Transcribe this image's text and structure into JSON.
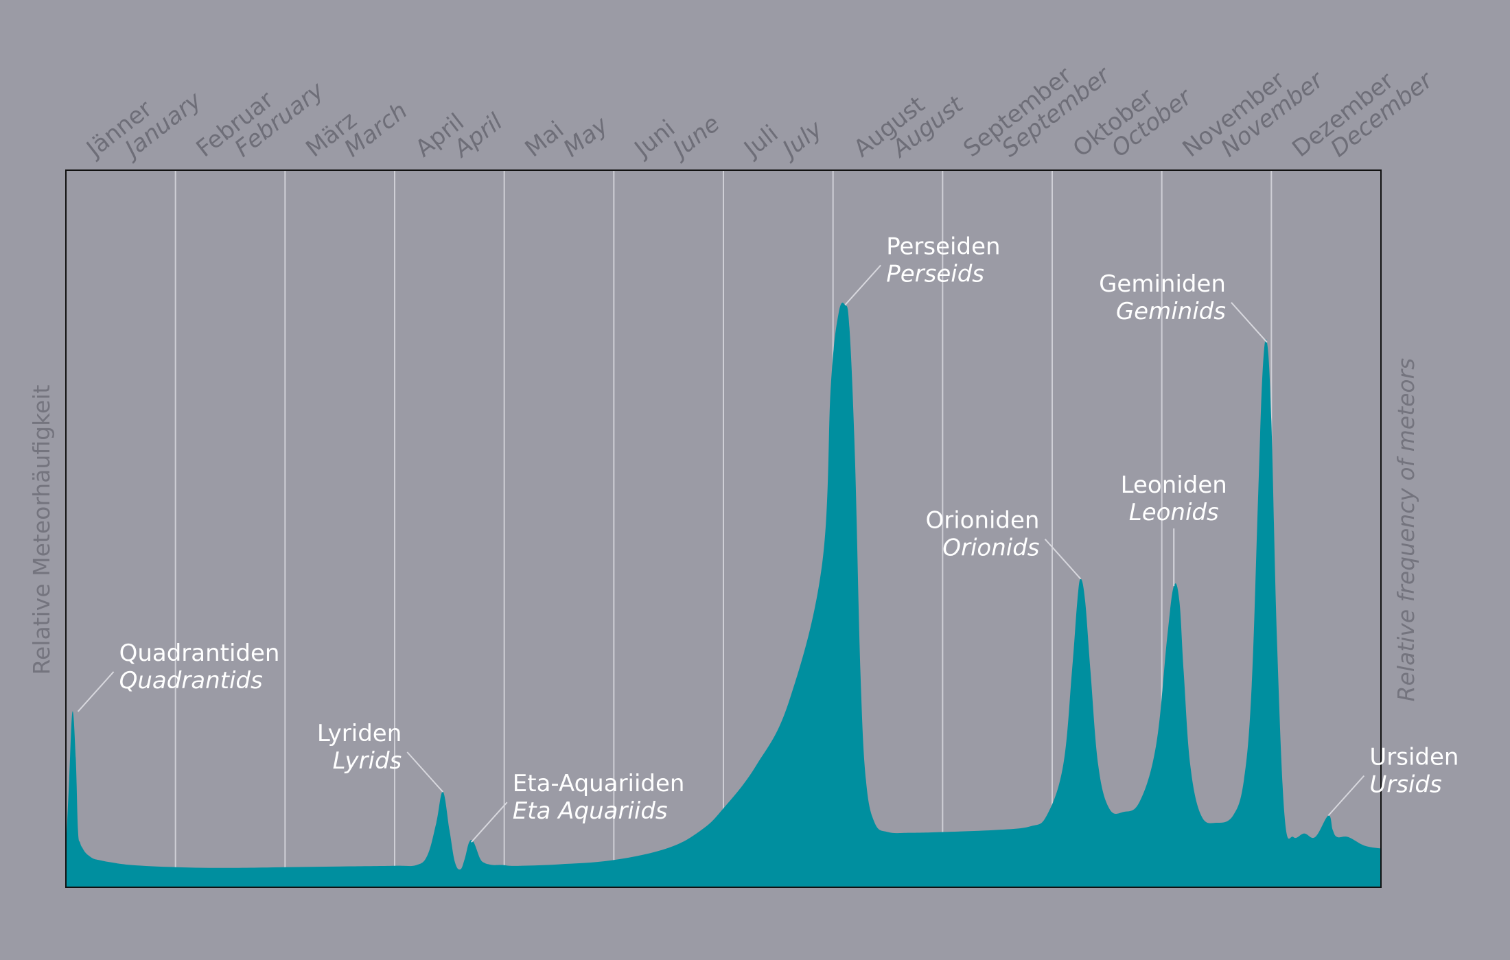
{
  "chart_data": {
    "type": "area",
    "fill_color": "#008f9f",
    "background_color": "#9b9ba5",
    "xlim": [
      0,
      12
    ],
    "ylim": [
      0,
      1
    ],
    "grid_vertical": true,
    "months": [
      {
        "de": "Jänner",
        "en": "January"
      },
      {
        "de": "Februar",
        "en": "February"
      },
      {
        "de": "März",
        "en": "March"
      },
      {
        "de": "April",
        "en": "April"
      },
      {
        "de": "Mai",
        "en": "May"
      },
      {
        "de": "Juni",
        "en": "June"
      },
      {
        "de": "Juli",
        "en": "July"
      },
      {
        "de": "August",
        "en": "August"
      },
      {
        "de": "September",
        "en": "September"
      },
      {
        "de": "Oktober",
        "en": "October"
      },
      {
        "de": "November",
        "en": "November"
      },
      {
        "de": "Dezember",
        "en": "December"
      }
    ],
    "ylabel_left": "Relative Meteorhäufigkeit",
    "ylabel_right": "Relative frequency of meteors",
    "series": [
      {
        "x": [
          0.0,
          0.03,
          0.06,
          0.09,
          0.11,
          0.13,
          0.15,
          0.18,
          0.21,
          0.25,
          0.3,
          0.4,
          0.6,
          1.0,
          1.5,
          2.0,
          2.5,
          3.0,
          3.2,
          3.3,
          3.38,
          3.44,
          3.5,
          3.55,
          3.6,
          3.64,
          3.68,
          3.72,
          3.78,
          3.82,
          3.86,
          3.9,
          3.94,
          3.99,
          4.05,
          4.15,
          4.5,
          5.0,
          5.5,
          5.8,
          6.0,
          6.3,
          6.6,
          6.9,
          6.98,
          7.05,
          7.11,
          7.15,
          7.2,
          7.25,
          7.3,
          7.38,
          7.5,
          7.7,
          8.0,
          8.5,
          8.8,
          8.95,
          9.1,
          9.18,
          9.23,
          9.26,
          9.3,
          9.35,
          9.42,
          9.52,
          9.65,
          9.8,
          9.95,
          10.05,
          10.11,
          10.16,
          10.2,
          10.26,
          10.36,
          10.5,
          10.65,
          10.75,
          10.82,
          10.88,
          10.92,
          10.96,
          11.0,
          11.05,
          11.12,
          11.2,
          11.3,
          11.4,
          11.52,
          11.56,
          11.6,
          11.7,
          11.85,
          12.0
        ],
        "y": [
          0.055,
          0.15,
          0.245,
          0.18,
          0.08,
          0.062,
          0.055,
          0.048,
          0.044,
          0.04,
          0.038,
          0.035,
          0.031,
          0.028,
          0.027,
          0.028,
          0.029,
          0.03,
          0.031,
          0.045,
          0.09,
          0.133,
          0.08,
          0.035,
          0.025,
          0.04,
          0.063,
          0.063,
          0.04,
          0.034,
          0.032,
          0.031,
          0.031,
          0.031,
          0.03,
          0.03,
          0.032,
          0.038,
          0.055,
          0.08,
          0.11,
          0.17,
          0.26,
          0.45,
          0.7,
          0.8,
          0.812,
          0.78,
          0.6,
          0.3,
          0.15,
          0.09,
          0.077,
          0.076,
          0.077,
          0.08,
          0.085,
          0.1,
          0.17,
          0.3,
          0.4,
          0.43,
          0.4,
          0.3,
          0.17,
          0.11,
          0.105,
          0.12,
          0.2,
          0.35,
          0.42,
          0.4,
          0.3,
          0.17,
          0.1,
          0.09,
          0.1,
          0.15,
          0.28,
          0.55,
          0.72,
          0.76,
          0.65,
          0.35,
          0.1,
          0.07,
          0.075,
          0.07,
          0.1,
          0.08,
          0.07,
          0.07,
          0.058,
          0.054
        ]
      }
    ],
    "annotations": [
      {
        "de": "Quadrantiden",
        "en": "Quadrantids",
        "x": 0.11,
        "y": 0.245,
        "side": "right"
      },
      {
        "de": "Lyriden",
        "en": "Lyrids",
        "x": 3.44,
        "y": 0.133,
        "side": "left"
      },
      {
        "de": "Eta-Aquariiden",
        "en": "Eta Aquariids",
        "x": 3.7,
        "y": 0.063,
        "side": "right"
      },
      {
        "de": "Perseiden",
        "en": "Perseids",
        "x": 7.11,
        "y": 0.812,
        "side": "right"
      },
      {
        "de": "Orioniden",
        "en": "Orionids",
        "x": 9.26,
        "y": 0.43,
        "side": "left"
      },
      {
        "de": "Leoniden",
        "en": "Leonids",
        "x": 10.11,
        "y": 0.42,
        "side": "top"
      },
      {
        "de": "Geminiden",
        "en": "Geminids",
        "x": 10.96,
        "y": 0.76,
        "side": "left"
      },
      {
        "de": "Ursiden",
        "en": "Ursids",
        "x": 11.52,
        "y": 0.1,
        "side": "right"
      }
    ]
  }
}
